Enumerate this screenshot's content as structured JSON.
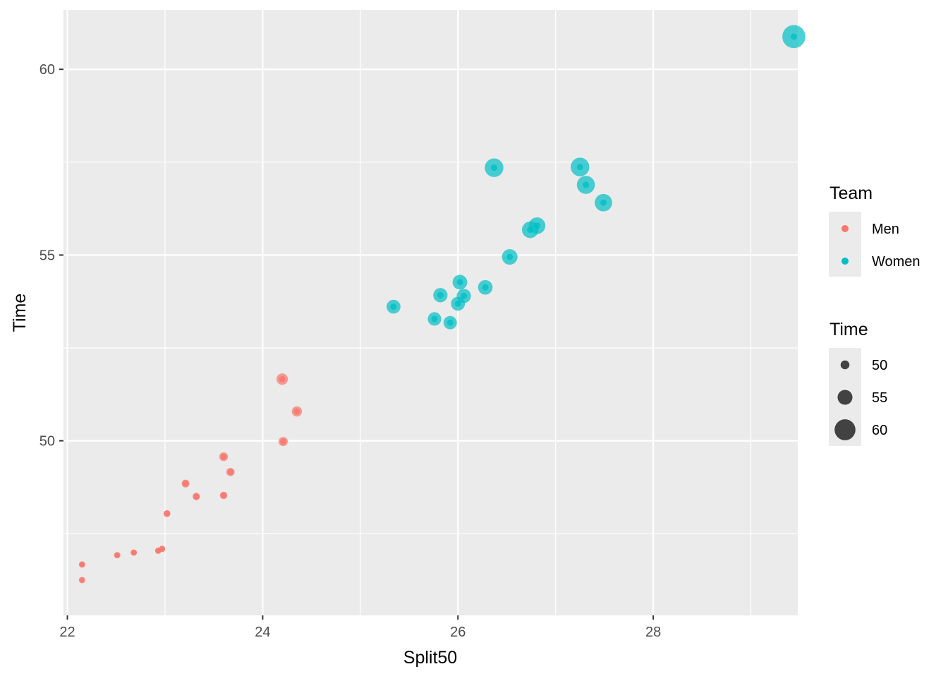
{
  "chart_data": {
    "type": "scatter",
    "xlabel": "Split50",
    "ylabel": "Time",
    "xlim": [
      21.96,
      29.48
    ],
    "ylim": [
      45.3,
      61.6
    ],
    "x_ticks": [
      22,
      24,
      26,
      28
    ],
    "y_ticks": [
      50,
      55,
      60
    ],
    "x_tick_labels": [
      "22",
      "24",
      "26",
      "28"
    ],
    "y_tick_labels": [
      "50",
      "55",
      "60"
    ],
    "grid": true,
    "panel_background": "#ebebeb",
    "grid_color": "#ffffff",
    "series": [
      {
        "name": "Men",
        "color": "#F8766D",
        "points": [
          {
            "x": 22.15,
            "y": 46.25
          },
          {
            "x": 22.15,
            "y": 46.67
          },
          {
            "x": 22.51,
            "y": 46.92
          },
          {
            "x": 22.68,
            "y": 46.99
          },
          {
            "x": 22.93,
            "y": 47.04
          },
          {
            "x": 22.97,
            "y": 47.09
          },
          {
            "x": 23.02,
            "y": 48.04
          },
          {
            "x": 23.21,
            "y": 48.85
          },
          {
            "x": 23.32,
            "y": 48.5
          },
          {
            "x": 23.6,
            "y": 48.53
          },
          {
            "x": 23.6,
            "y": 49.57
          },
          {
            "x": 23.67,
            "y": 49.16
          },
          {
            "x": 24.2,
            "y": 51.66
          },
          {
            "x": 24.21,
            "y": 49.98
          },
          {
            "x": 24.35,
            "y": 50.79
          }
        ]
      },
      {
        "name": "Women",
        "color": "#00BFC4",
        "points": [
          {
            "x": 25.34,
            "y": 53.61
          },
          {
            "x": 25.76,
            "y": 53.28
          },
          {
            "x": 25.82,
            "y": 53.92
          },
          {
            "x": 25.92,
            "y": 53.18
          },
          {
            "x": 26.0,
            "y": 53.69
          },
          {
            "x": 26.02,
            "y": 54.27
          },
          {
            "x": 26.06,
            "y": 53.9
          },
          {
            "x": 26.28,
            "y": 54.13
          },
          {
            "x": 26.37,
            "y": 57.35
          },
          {
            "x": 26.53,
            "y": 54.95
          },
          {
            "x": 26.74,
            "y": 55.68
          },
          {
            "x": 26.81,
            "y": 55.79
          },
          {
            "x": 27.25,
            "y": 57.37
          },
          {
            "x": 27.31,
            "y": 56.89
          },
          {
            "x": 27.49,
            "y": 56.41
          },
          {
            "x": 29.44,
            "y": 60.88
          }
        ]
      }
    ],
    "legend": {
      "placement": "right",
      "color_title": "Team",
      "color_items": [
        {
          "label": "Men",
          "color": "#F8766D"
        },
        {
          "label": "Women",
          "color": "#00BFC4"
        }
      ],
      "size_title": "Time",
      "size_items": [
        {
          "label": "50",
          "value": 50
        },
        {
          "label": "55",
          "value": 55
        },
        {
          "label": "60",
          "value": 60
        }
      ]
    }
  }
}
